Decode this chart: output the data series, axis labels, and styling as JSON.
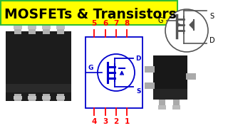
{
  "title": "MOSFETs & Transistors",
  "title_bg": "#FFFF00",
  "title_color": "#000000",
  "title_border": "#33BB33",
  "bg_color": "#FFFFFF",
  "red": "#FF0000",
  "blue": "#0000CC",
  "dark": "#111111",
  "silver": "#AAAAAA",
  "gray_line": "#555555",
  "top_pins": [
    "5",
    "6",
    "7",
    "8"
  ],
  "bot_pins": [
    "4",
    "3",
    "2",
    "1"
  ]
}
